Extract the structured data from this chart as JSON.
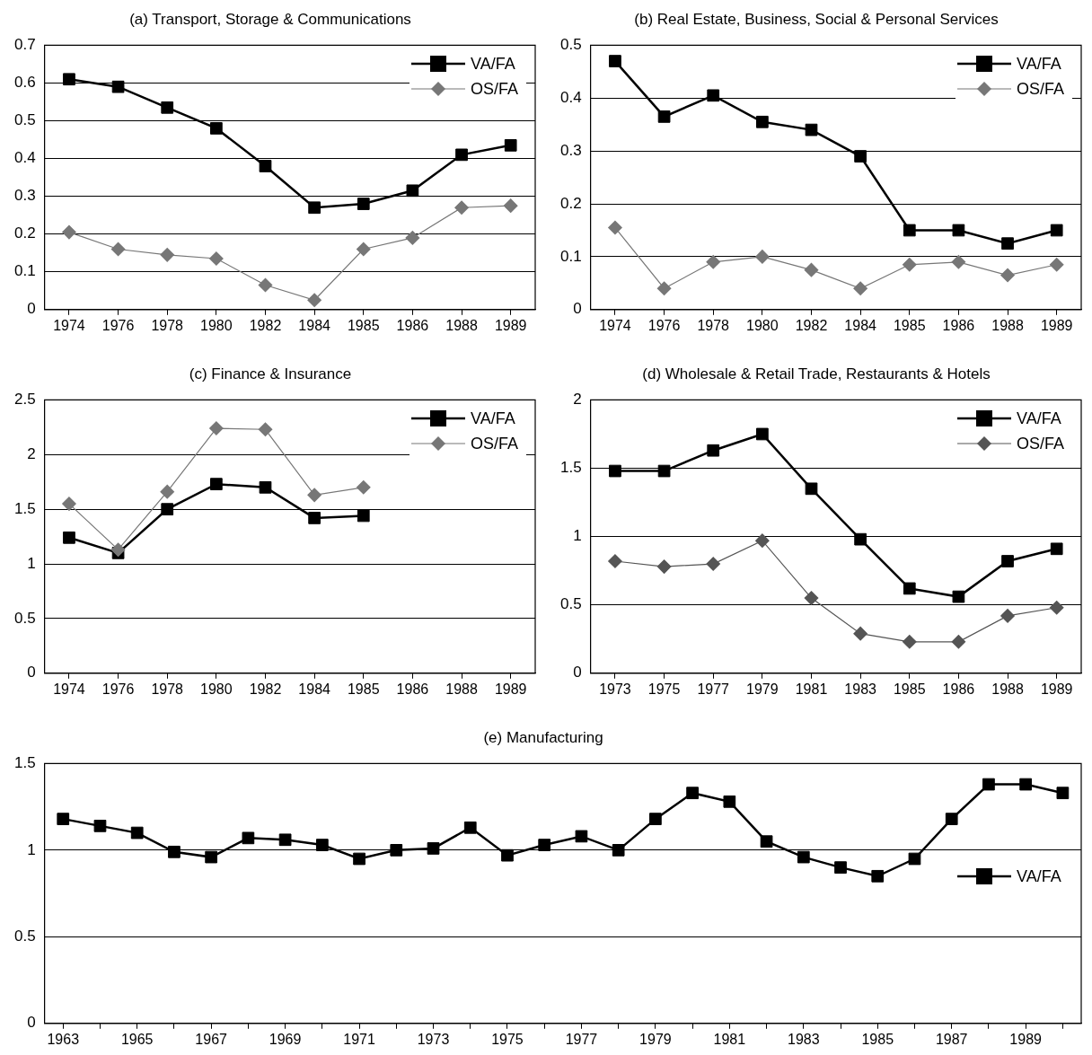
{
  "chart_data": [
    {
      "type": "line",
      "title": "(a) Transport, Storage & Communications",
      "categories": [
        "1974",
        "1976",
        "1978",
        "1980",
        "1982",
        "1984",
        "1985",
        "1986",
        "1988",
        "1989"
      ],
      "ylim": [
        0,
        0.7
      ],
      "yticks": [
        0,
        0.1,
        0.2,
        0.3,
        0.4,
        0.5,
        0.6,
        0.7
      ],
      "grid": "y",
      "legend": "top right",
      "series": [
        {
          "name": "VA/FA",
          "color": "#000000",
          "marker": "square",
          "values": [
            0.61,
            0.59,
            0.535,
            0.48,
            0.38,
            0.27,
            0.28,
            0.315,
            0.41,
            0.435
          ]
        },
        {
          "name": "OS/FA",
          "color": "#777777",
          "marker": "diamond",
          "values": [
            0.205,
            0.16,
            0.145,
            0.135,
            0.065,
            0.025,
            0.16,
            0.19,
            0.27,
            0.275
          ]
        }
      ]
    },
    {
      "type": "line",
      "title": "(b) Real Estate, Business, Social & Personal Services",
      "categories": [
        "1974",
        "1976",
        "1978",
        "1980",
        "1982",
        "1984",
        "1985",
        "1986",
        "1988",
        "1989"
      ],
      "ylim": [
        0,
        0.5
      ],
      "yticks": [
        0,
        0.1,
        0.2,
        0.3,
        0.4,
        0.5
      ],
      "grid": "y",
      "legend": "top right",
      "series": [
        {
          "name": "VA/FA",
          "color": "#000000",
          "marker": "square",
          "values": [
            0.47,
            0.365,
            0.405,
            0.355,
            0.34,
            0.29,
            0.15,
            0.15,
            0.125,
            0.15
          ]
        },
        {
          "name": "OS/FA",
          "color": "#777777",
          "marker": "diamond",
          "values": [
            0.155,
            0.04,
            0.09,
            0.1,
            0.075,
            0.04,
            0.085,
            0.09,
            0.065,
            0.085
          ]
        }
      ]
    },
    {
      "type": "line",
      "title": "(c) Finance & Insurance",
      "categories": [
        "1974",
        "1976",
        "1978",
        "1980",
        "1982",
        "1984",
        "1985",
        "1986",
        "1988",
        "1989"
      ],
      "ylim": [
        0,
        2.5
      ],
      "yticks": [
        0,
        0.5,
        1,
        1.5,
        2,
        2.5
      ],
      "grid": "y",
      "legend": "top right",
      "series": [
        {
          "name": "VA/FA",
          "color": "#000000",
          "marker": "square",
          "values": [
            1.24,
            1.1,
            1.5,
            1.73,
            1.7,
            1.42,
            1.44,
            null,
            null,
            null
          ]
        },
        {
          "name": "OS/FA",
          "color": "#777777",
          "marker": "diamond",
          "values": [
            1.55,
            1.13,
            1.66,
            2.24,
            2.23,
            1.63,
            1.7,
            null,
            null,
            null
          ]
        }
      ]
    },
    {
      "type": "line",
      "title": "(d) Wholesale & Retail Trade, Restaurants & Hotels",
      "categories": [
        "1973",
        "1975",
        "1977",
        "1979",
        "1981",
        "1983",
        "1985",
        "1986",
        "1988",
        "1989"
      ],
      "ylim": [
        0,
        2
      ],
      "yticks": [
        0,
        0.5,
        1,
        1.5,
        2
      ],
      "grid": "y",
      "legend": "top right",
      "series": [
        {
          "name": "VA/FA",
          "color": "#000000",
          "marker": "square",
          "values": [
            1.48,
            1.48,
            1.63,
            1.75,
            1.35,
            0.98,
            0.62,
            0.56,
            0.82,
            0.91
          ]
        },
        {
          "name": "OS/FA",
          "color": "#555555",
          "marker": "diamond",
          "values": [
            0.82,
            0.78,
            0.8,
            0.97,
            0.55,
            0.29,
            0.23,
            0.23,
            0.42,
            0.48
          ]
        }
      ]
    },
    {
      "type": "line",
      "title": "(e) Manufacturing",
      "categories": [
        "1963",
        null,
        "1965",
        null,
        "1967",
        null,
        "1969",
        null,
        "1971",
        null,
        "1973",
        null,
        "1975",
        null,
        "1977",
        null,
        "1979",
        null,
        "1981",
        null,
        "1983",
        null,
        "1985",
        null,
        "1987",
        null,
        "1989",
        null
      ],
      "ylim": [
        0,
        1.5
      ],
      "yticks": [
        0,
        0.5,
        1,
        1.5
      ],
      "grid": "y",
      "legend": "right",
      "series": [
        {
          "name": "VA/FA",
          "color": "#000000",
          "marker": "square",
          "values": [
            1.18,
            1.14,
            1.1,
            0.99,
            0.96,
            1.07,
            1.06,
            1.03,
            0.95,
            1.0,
            1.01,
            1.13,
            0.97,
            1.03,
            1.08,
            1.0,
            1.18,
            1.33,
            1.28,
            1.05,
            0.96,
            0.9,
            0.85,
            0.95,
            1.18,
            1.38,
            1.38,
            1.33
          ]
        }
      ]
    }
  ]
}
